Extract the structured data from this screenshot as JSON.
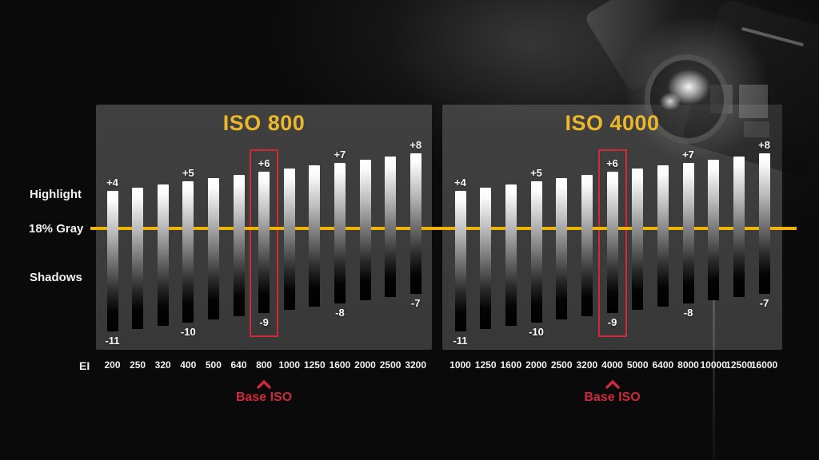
{
  "colors": {
    "title_yellow": "#edb72a",
    "line_yellow": "#eeb303",
    "accent_red": "#d1293a",
    "panel_gray": "#3b3b3b",
    "text_white": "#f2f2f2"
  },
  "scale_labels": {
    "highlight": "Highlight",
    "gray": "18% Gray",
    "shadows": "Shadows"
  },
  "ei_axis_label": "EI",
  "base_iso_label": "Base ISO",
  "chart_data": [
    {
      "type": "bar",
      "title": "ISO 800",
      "xlabel": "EI",
      "categories": [
        "200",
        "250",
        "320",
        "400",
        "500",
        "640",
        "800",
        "1000",
        "1250",
        "1600",
        "2000",
        "2500",
        "3200"
      ],
      "base_iso": "800",
      "base_index": 6,
      "total_stops_per_bar": 15,
      "gray_reference": "18% Gray",
      "series": [
        {
          "name": "highlight_stops_above_18pct_gray",
          "values": [
            4,
            4.33,
            4.67,
            5,
            5.33,
            5.67,
            6,
            6.33,
            6.67,
            7,
            7.33,
            7.67,
            8
          ]
        },
        {
          "name": "shadow_stops_below_18pct_gray",
          "values": [
            11,
            10.67,
            10.33,
            10,
            9.67,
            9.33,
            9,
            8.67,
            8.33,
            8,
            7.67,
            7.33,
            7
          ]
        }
      ],
      "labeled_indices": [
        0,
        3,
        6,
        9,
        12
      ],
      "highlight_labels": [
        "+4",
        "+5",
        "+6",
        "+7",
        "+8"
      ],
      "shadow_labels": [
        "-11",
        "-10",
        "-9",
        "-8",
        "-7"
      ]
    },
    {
      "type": "bar",
      "title": "ISO 4000",
      "xlabel": "",
      "categories": [
        "1000",
        "1250",
        "1600",
        "2000",
        "2500",
        "3200",
        "4000",
        "5000",
        "6400",
        "8000",
        "10000",
        "12500",
        "16000"
      ],
      "base_iso": "4000",
      "base_index": 6,
      "total_stops_per_bar": 15,
      "gray_reference": "18% Gray",
      "series": [
        {
          "name": "highlight_stops_above_18pct_gray",
          "values": [
            4,
            4.33,
            4.67,
            5,
            5.33,
            5.67,
            6,
            6.33,
            6.67,
            7,
            7.33,
            7.67,
            8
          ]
        },
        {
          "name": "shadow_stops_below_18pct_gray",
          "values": [
            11,
            10.67,
            10.33,
            10,
            9.67,
            9.33,
            9,
            8.67,
            8.33,
            8,
            7.67,
            7.33,
            7
          ]
        }
      ],
      "labeled_indices": [
        0,
        3,
        6,
        9,
        12
      ],
      "highlight_labels": [
        "+4",
        "+5",
        "+6",
        "+7",
        "+8"
      ],
      "shadow_labels": [
        "-11",
        "-10",
        "-9",
        "-8",
        "-7"
      ]
    }
  ]
}
